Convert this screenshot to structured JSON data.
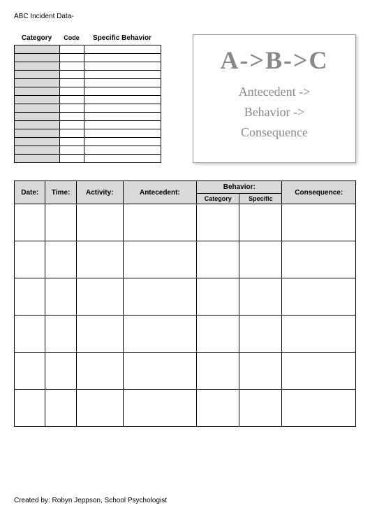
{
  "header_text": "ABC Incident Data-",
  "small_table": {
    "headers": {
      "category": "Category",
      "code": "Code",
      "specific": "Specific Behavior"
    },
    "row_count": 14,
    "cols": {
      "category_bg": "#d9d9d9",
      "code_bg": "#ffffff",
      "specific_bg": "#ffffff"
    }
  },
  "abc_box": {
    "title": "A->B->C",
    "line1": "Antecedent ->",
    "line2": "Behavior ->",
    "line3": "Consequence",
    "text_color": "#888888",
    "border_color": "#999999"
  },
  "main_table": {
    "headers": {
      "date": "Date:",
      "time": "Time:",
      "activity": "Activity:",
      "antecedent": "Antecedent:",
      "behavior": "Behavior:",
      "beh_category": "Category",
      "beh_specific": "Specific",
      "consequence": "Consequence:"
    },
    "header_bg": "#d9d9d9",
    "data_row_count": 6
  },
  "footer_text": "Created by: Robyn Jeppson, School Psychologist"
}
